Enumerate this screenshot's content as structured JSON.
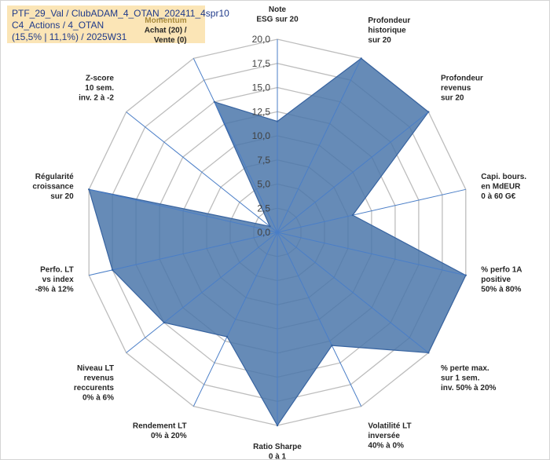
{
  "title": {
    "line1": "PTF_29_Val / ClubADAM_4_OTAN_202411_4spr10",
    "line2": "C4_Actions / 4_OTAN",
    "line3": "(15,5% | 11,1%) / 2025W31"
  },
  "colors": {
    "fill": "#4b77aa",
    "stroke": "#3763a0",
    "spoke": "#4a7ec7",
    "grid": "#bdbdbd",
    "title_bg": "#fbe5b6",
    "title_text": "#1f3a8a",
    "highlight_label": "#a88a3c"
  },
  "chart_data": {
    "type": "radar",
    "title": "",
    "rlim": [
      0,
      20
    ],
    "ticks": [
      "0,0",
      "2,5",
      "5,0",
      "7,5",
      "10,0",
      "12,5",
      "15,0",
      "17,5",
      "20,0"
    ],
    "grid": true,
    "axes": [
      {
        "lines": [
          "Note",
          "ESG sur 20"
        ]
      },
      {
        "lines": [
          "Profondeur",
          "historique",
          "sur 20"
        ]
      },
      {
        "lines": [
          "Profondeur",
          "revenus",
          "sur 20"
        ]
      },
      {
        "lines": [
          "Capi. bours.",
          "en MdEUR",
          "0 à 60 G€"
        ]
      },
      {
        "lines": [
          "% perfo 1A",
          "positive",
          "50% à 80%"
        ]
      },
      {
        "lines": [
          "% perte max.",
          "sur 1 sem.",
          "inv. 50% à 20%"
        ]
      },
      {
        "lines": [
          "Volatilité LT",
          "inversée",
          "40% à 0%"
        ]
      },
      {
        "lines": [
          "Ratio Sharpe",
          "0 à 1"
        ]
      },
      {
        "lines": [
          "Rendement LT",
          "0% à 20%"
        ]
      },
      {
        "lines": [
          "Niveau LT",
          "revenus",
          "reccurents",
          "0% à 6%"
        ]
      },
      {
        "lines": [
          "Perfo. LT",
          "vs index",
          "-8% à 12%"
        ]
      },
      {
        "lines": [
          "Régularité",
          "croissance",
          "sur 20"
        ]
      },
      {
        "lines": [
          "Z-score",
          "10 sem.",
          "inv. 2 à -2"
        ]
      },
      {
        "lines": [
          "Momentum",
          "Achat (20) /",
          "Vente (0)"
        ],
        "highlight_first_line": true
      }
    ],
    "series": [
      {
        "values": [
          11.5,
          20.0,
          20.0,
          8.0,
          20.0,
          20.0,
          13.0,
          20.0,
          12.0,
          15.0,
          17.5,
          20.0,
          1.0,
          15.0
        ]
      }
    ]
  }
}
